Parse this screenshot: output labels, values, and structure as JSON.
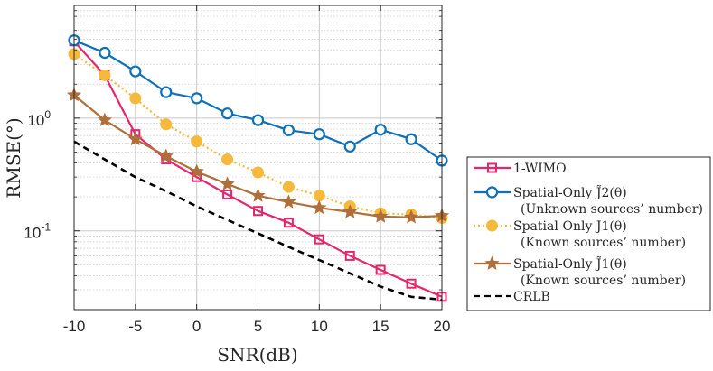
{
  "chart_data": {
    "type": "line",
    "x": [
      -10,
      -7.5,
      -5,
      -2.5,
      0,
      2.5,
      5,
      7.5,
      10,
      12.5,
      15,
      17.5,
      20
    ],
    "xlim": [
      -10,
      20
    ],
    "ylim": [
      0.02,
      10
    ],
    "yscale": "log",
    "xticks": [
      -10,
      -5,
      0,
      5,
      10,
      15,
      20
    ],
    "xtick_labels": [
      "-10",
      "-5",
      "0",
      "5",
      "10",
      "15",
      "20"
    ],
    "ytick_labels": [
      {
        "base": "10",
        "exp": "-1",
        "value": 0.1
      },
      {
        "base": "10",
        "exp": "0",
        "value": 1
      }
    ],
    "xlabel": "SNR(dB)",
    "ylabel": "RMSE(°)",
    "grid": true,
    "legend_position": "right-outside",
    "series": [
      {
        "name": "1-WIMO",
        "subtitle": "",
        "color": "#e6266b",
        "marker": "square",
        "linestyle": "solid",
        "values": [
          4.8,
          2.4,
          0.72,
          0.43,
          0.3,
          0.21,
          0.15,
          0.118,
          0.084,
          0.06,
          0.045,
          0.034,
          0.026
        ]
      },
      {
        "name": "Spatial-Only J̃2(θ)",
        "subtitle": "(Unknown sources’ number)",
        "color": "#0e71b8",
        "marker": "circle-open",
        "linestyle": "solid",
        "values": [
          4.9,
          3.8,
          2.6,
          1.7,
          1.5,
          1.1,
          0.96,
          0.78,
          0.72,
          0.56,
          0.79,
          0.65,
          0.42
        ]
      },
      {
        "name": "Spatial-Only J1(θ)",
        "subtitle": "(Known sources’ number)",
        "color": "#f6b93b",
        "marker": "circle-filled",
        "linestyle": "dotted",
        "values": [
          3.7,
          2.4,
          1.5,
          0.88,
          0.62,
          0.43,
          0.33,
          0.245,
          0.205,
          0.165,
          0.143,
          0.14,
          0.13
        ]
      },
      {
        "name": "Spatial-Only J̃1(θ)",
        "subtitle": "(Known sources’ number)",
        "color": "#b06f3a",
        "marker": "star",
        "linestyle": "solid",
        "values": [
          1.6,
          0.96,
          0.65,
          0.46,
          0.335,
          0.26,
          0.205,
          0.18,
          0.16,
          0.147,
          0.134,
          0.132,
          0.136
        ]
      },
      {
        "name": "CRLB",
        "subtitle": "",
        "color": "#000000",
        "marker": "none",
        "linestyle": "dashed",
        "values": [
          0.62,
          0.43,
          0.3,
          0.225,
          0.165,
          0.125,
          0.095,
          0.072,
          0.055,
          0.042,
          0.032,
          0.026,
          0.0245
        ]
      }
    ]
  }
}
